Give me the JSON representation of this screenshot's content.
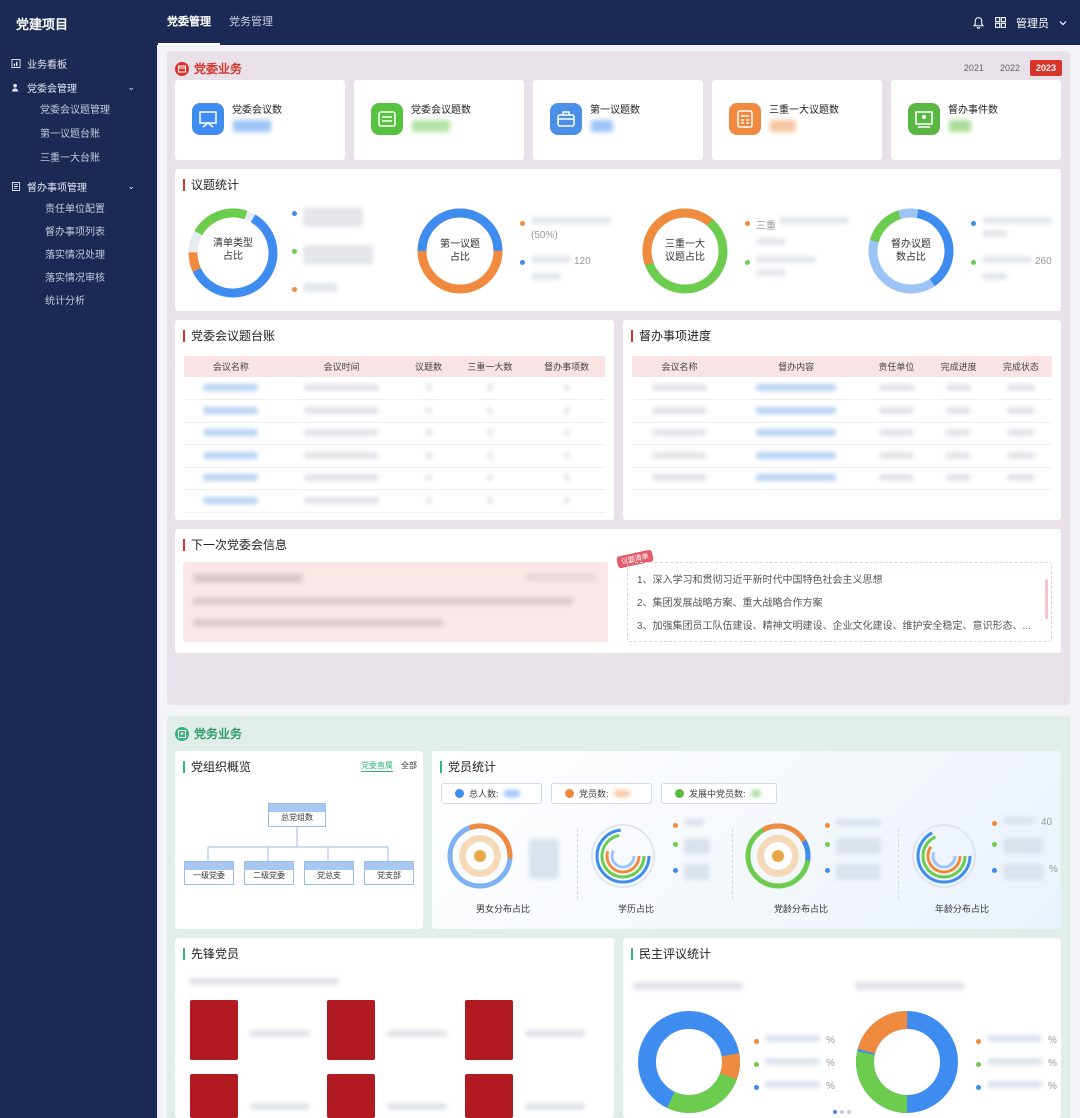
{
  "topbar": {
    "app_title": "党建项目",
    "tabs": [
      {
        "label": "党委管理",
        "active": true
      },
      {
        "label": "党务管理",
        "active": false
      }
    ],
    "user_label": "管理员",
    "icons": [
      "bell-icon",
      "grid-icon",
      "chevron-down-icon"
    ]
  },
  "sidebar": {
    "groups": [
      {
        "label": "业务看板",
        "icon": "chart-icon",
        "children": []
      },
      {
        "label": "党委会管理",
        "icon": "people-icon",
        "children": [
          "党委会议题管理",
          "第一议题台账",
          "三重一大台账"
        ]
      },
      {
        "label": "督办事项管理",
        "icon": "document-icon",
        "children": [
          "责任单位配置",
          "督办事项列表",
          "落实情况处理",
          "落实情况审核",
          "统计分析"
        ]
      }
    ]
  },
  "section1": {
    "title": "党委业务",
    "years": [
      {
        "label": "2021",
        "active": false
      },
      {
        "label": "2022",
        "active": false
      },
      {
        "label": "2023",
        "active": true
      }
    ],
    "stats": [
      {
        "label": "党委会议数",
        "color": "#3f8cf0"
      },
      {
        "label": "党委会议题数",
        "color": "#56c23f"
      },
      {
        "label": "第一议题数",
        "color": "#4a8fe8"
      },
      {
        "label": "三重一大议题数",
        "color": "#f08a3e"
      },
      {
        "label": "督办事件数",
        "color": "#5ab744"
      }
    ],
    "topic_stats": {
      "title": "议题统计",
      "donuts": [
        {
          "center": [
            "清单类型",
            "占比"
          ],
          "legend_colors": [
            "#3f8cf0",
            "#6ccc4e",
            "#f08a3e"
          ],
          "legend_visible": [
            "",
            "",
            ""
          ]
        },
        {
          "center": [
            "第一议题",
            "占比"
          ],
          "legend_colors": [
            "#f08a3e",
            "#3f8cf0"
          ],
          "legend_visible": [
            "(50%)",
            "120"
          ]
        },
        {
          "center": [
            "三重一大",
            "议题占比"
          ],
          "legend_colors": [
            "#f08a3e",
            "#6ccc4e"
          ],
          "legend_visible": [
            "三重",
            ""
          ]
        },
        {
          "center": [
            "督办议题",
            "数占比"
          ],
          "legend_colors": [
            "#3f8cf0",
            "#6ccc4e"
          ],
          "legend_visible": [
            "",
            "260"
          ]
        }
      ]
    },
    "meeting_ledger": {
      "title": "党委会议题台账",
      "columns": [
        "会议名称",
        "会议时间",
        "议题数",
        "三重一大数",
        "督办事项数"
      ],
      "row_count": 6
    },
    "supervision_progress": {
      "title": "督办事项进度",
      "columns": [
        "会议名称",
        "督办内容",
        "责任单位",
        "完成进度",
        "完成状态"
      ],
      "row_count": 5
    },
    "next_meeting": {
      "title": "下一次党委会信息",
      "badge": "议题清单",
      "topics": [
        "1、深入学习和贯彻习近平新时代中国特色社会主义思想",
        "2、集团发展战略方案、重大战略合作方案",
        "3、加强集团员工队伍建设、精神文明建设、企业文化建设、维护安全稳定、意识形态、..."
      ]
    }
  },
  "section2": {
    "title": "党务业务",
    "org_overview": {
      "title": "党组织概览",
      "tabs": [
        {
          "label": "党委直属",
          "active": true
        },
        {
          "label": "全部",
          "active": false
        }
      ],
      "root": "总党组数",
      "children": [
        "一级党委",
        "二级党委",
        "党总支",
        "党支部"
      ]
    },
    "member_stats": {
      "title": "党员统计",
      "pills": [
        {
          "label": "总人数:",
          "icon": "users-icon",
          "color": "#3f8cf0"
        },
        {
          "label": "党员数:",
          "icon": "member-icon",
          "color": "#f08a3e"
        },
        {
          "label": "发展中党员数:",
          "icon": "growth-icon",
          "color": "#5ab744"
        }
      ],
      "charts": [
        {
          "label": "男女分布占比"
        },
        {
          "label": "学历占比"
        },
        {
          "label": "党龄分布占比"
        },
        {
          "label": "年龄分布占比"
        }
      ],
      "legend_visible": [
        "40",
        "",
        "",
        "",
        "%"
      ]
    },
    "pioneers": {
      "title": "先锋党员"
    },
    "democratic_review": {
      "title": "民主评议统计",
      "legend_visible": [
        "%",
        "%",
        "%",
        "%",
        "%",
        "%"
      ]
    }
  }
}
